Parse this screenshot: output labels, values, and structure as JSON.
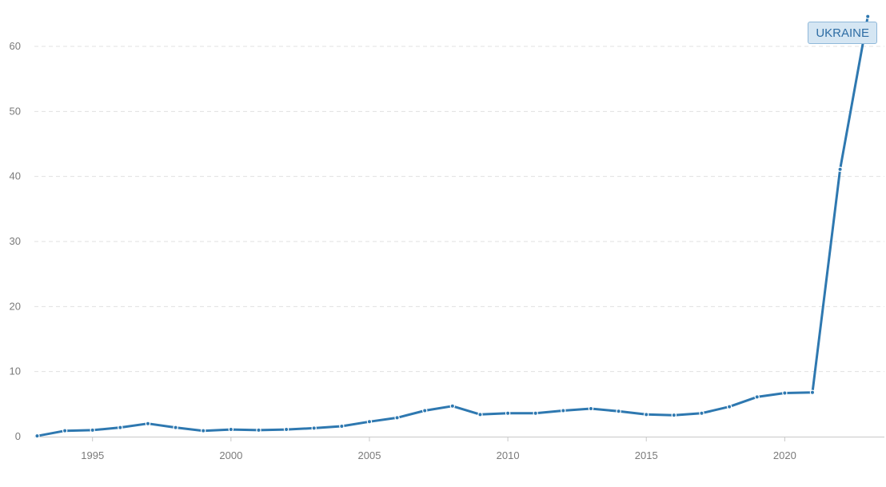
{
  "chart_data": {
    "type": "line",
    "title": "",
    "xlabel": "",
    "ylabel": "",
    "xlim": [
      1992.9,
      2023.6
    ],
    "ylim": [
      0,
      65
    ],
    "x_ticks": [
      1995,
      2000,
      2005,
      2010,
      2015,
      2020
    ],
    "y_ticks": [
      0,
      10,
      20,
      30,
      40,
      50,
      60
    ],
    "grid": true,
    "legend": "top-right",
    "series": [
      {
        "name": "UKRAINE",
        "color": "#2e78b0",
        "x": [
          1993,
          1994,
          1995,
          1996,
          1997,
          1998,
          1999,
          2000,
          2001,
          2002,
          2003,
          2004,
          2005,
          2006,
          2007,
          2008,
          2009,
          2010,
          2011,
          2012,
          2013,
          2014,
          2015,
          2016,
          2017,
          2018,
          2019,
          2020,
          2021,
          2022,
          2023
        ],
        "values": [
          0.1,
          0.9,
          1.0,
          1.4,
          2.0,
          1.4,
          0.9,
          1.1,
          1.0,
          1.1,
          1.3,
          1.6,
          2.3,
          2.9,
          4.0,
          4.7,
          3.4,
          3.6,
          3.6,
          4.0,
          4.3,
          3.9,
          3.4,
          3.3,
          3.6,
          4.6,
          6.1,
          6.7,
          6.8,
          41.1,
          64.6
        ]
      }
    ]
  }
}
